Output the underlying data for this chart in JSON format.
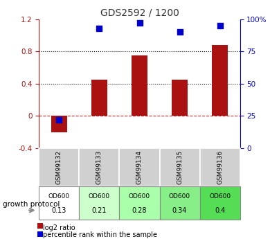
{
  "title": "GDS2592 / 1200",
  "samples": [
    "GSM99132",
    "GSM99133",
    "GSM99134",
    "GSM99135",
    "GSM99136"
  ],
  "log2_ratio": [
    -0.2,
    0.45,
    0.75,
    0.45,
    0.88
  ],
  "percentile_rank": [
    22,
    93,
    97,
    90,
    95
  ],
  "left_ylim": [
    -0.4,
    1.2
  ],
  "right_ylim": [
    0,
    100
  ],
  "left_yticks": [
    -0.4,
    0.0,
    0.4,
    0.8,
    1.2
  ],
  "right_yticks": [
    0,
    25,
    50,
    75,
    100
  ],
  "left_ytick_labels": [
    "-0.4",
    "0",
    "0.4",
    "0.8",
    "1.2"
  ],
  "right_ytick_labels": [
    "0",
    "25",
    "50",
    "75",
    "100%"
  ],
  "bar_color": "#aa1111",
  "scatter_color": "#0000cc",
  "zero_line_color": "#cc2222",
  "grid_color": "#000000",
  "plot_bg": "#ffffff",
  "od_values": [
    "0.13",
    "0.21",
    "0.28",
    "0.34",
    "0.4"
  ],
  "od_colors": [
    "#ffffff",
    "#ccffcc",
    "#aaffaa",
    "#88ee88",
    "#55dd55"
  ],
  "protocol_label": "growth protocol",
  "legend_red": "log2 ratio",
  "legend_blue": "percentile rank within the sample"
}
